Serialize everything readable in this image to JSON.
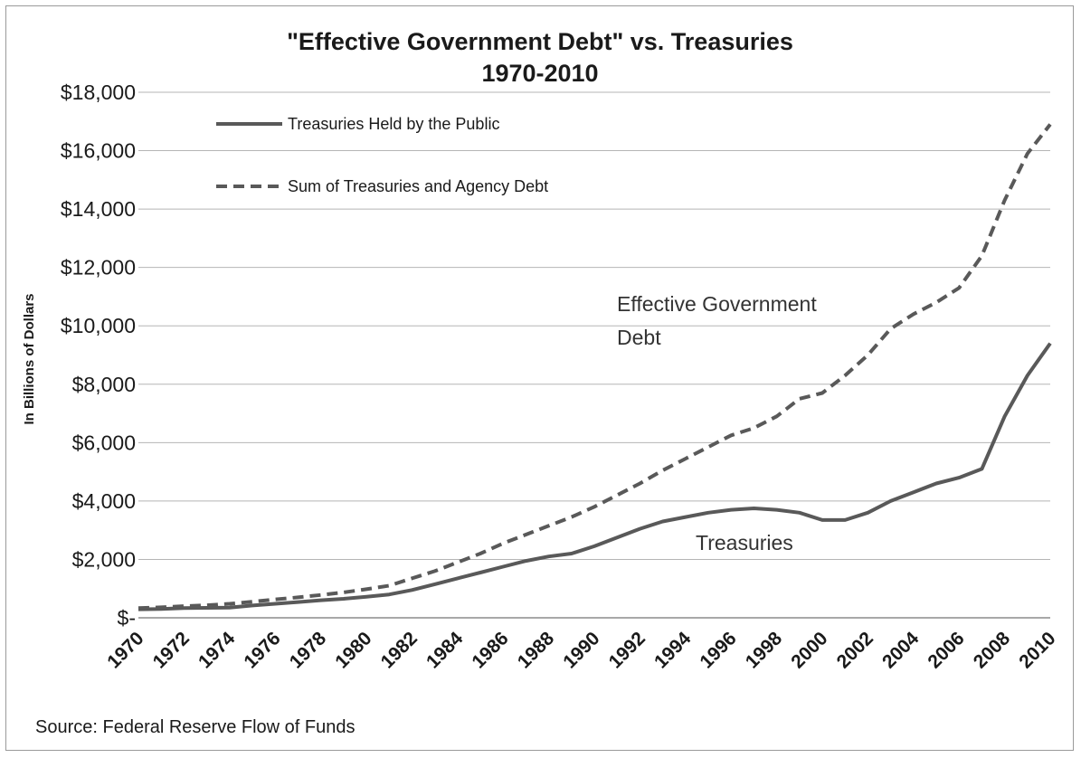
{
  "chart_data": {
    "type": "line",
    "title": "\"Effective Government Debt\" vs. Treasuries",
    "subtitle": "1970-2010",
    "ylabel": "In Billions of Dollars",
    "xlabel": "",
    "x": [
      1970,
      1971,
      1972,
      1973,
      1974,
      1975,
      1976,
      1977,
      1978,
      1979,
      1980,
      1981,
      1982,
      1983,
      1984,
      1985,
      1986,
      1987,
      1988,
      1989,
      1990,
      1991,
      1992,
      1993,
      1994,
      1995,
      1996,
      1997,
      1998,
      1999,
      2000,
      2001,
      2002,
      2003,
      2004,
      2005,
      2006,
      2007,
      2008,
      2009,
      2010
    ],
    "x_tick_labels": [
      "1970",
      "1972",
      "1974",
      "1976",
      "1978",
      "1980",
      "1982",
      "1984",
      "1986",
      "1988",
      "1990",
      "1992",
      "1994",
      "1996",
      "1998",
      "2000",
      "2002",
      "2004",
      "2006",
      "2008",
      "2010"
    ],
    "ylim": [
      0,
      18000
    ],
    "y_ticks": [
      0,
      2000,
      4000,
      6000,
      8000,
      10000,
      12000,
      14000,
      16000,
      18000
    ],
    "y_tick_labels": [
      "$-",
      "$2,000",
      "$4,000",
      "$6,000",
      "$8,000",
      "$10,000",
      "$12,000",
      "$14,000",
      "$16,000",
      "$18,000"
    ],
    "grid": true,
    "legend_position": "top-left",
    "series": [
      {
        "name": "Treasuries Held by the Public",
        "style": "solid",
        "color": "#595959",
        "values": [
          290,
          300,
          330,
          340,
          350,
          420,
          480,
          540,
          600,
          650,
          720,
          800,
          950,
          1150,
          1350,
          1550,
          1750,
          1950,
          2100,
          2200,
          2450,
          2750,
          3050,
          3300,
          3450,
          3600,
          3700,
          3750,
          3700,
          3600,
          3350,
          3350,
          3600,
          4000,
          4300,
          4600,
          4800,
          5100,
          6900,
          8300,
          9400
        ]
      },
      {
        "name": "Sum of Treasuries and Agency Debt",
        "style": "dashed",
        "color": "#595959",
        "values": [
          330,
          360,
          400,
          430,
          480,
          550,
          630,
          700,
          780,
          870,
          980,
          1100,
          1350,
          1600,
          1900,
          2200,
          2550,
          2850,
          3150,
          3450,
          3800,
          4200,
          4600,
          5050,
          5450,
          5850,
          6250,
          6500,
          6900,
          7500,
          7700,
          8300,
          9000,
          9900,
          10400,
          10800,
          11300,
          12400,
          14300,
          15900,
          16900
        ]
      }
    ],
    "annotations": {
      "effective_line1": "Effective Government",
      "effective_line2": "Debt",
      "treasuries": "Treasuries"
    },
    "source": "Source: Federal Reserve Flow of Funds"
  }
}
